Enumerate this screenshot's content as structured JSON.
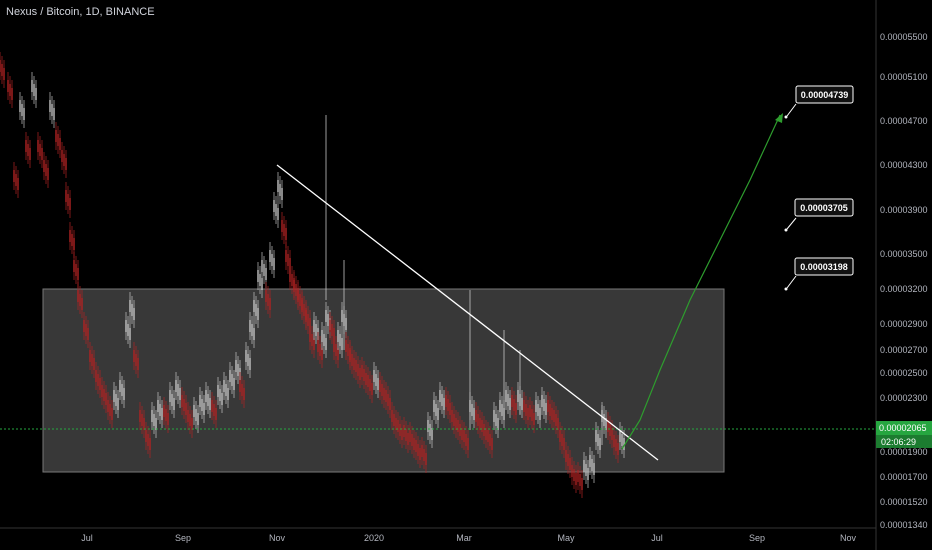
{
  "chart_data": {
    "type": "candlestick",
    "title": "Nexus / Bitcoin, 1D, BINANCE",
    "y_axis_ticks": [
      "0.00005500",
      "0.00005100",
      "0.00004700",
      "0.00004300",
      "0.00003900",
      "0.00003500",
      "0.00003200",
      "0.00002900",
      "0.00002700",
      "0.00002500",
      "0.00002300",
      "0.00001900",
      "0.00001700",
      "0.00001520",
      "0.00001340"
    ],
    "x_axis_ticks": [
      "Jul",
      "Sep",
      "Nov",
      "2020",
      "Mar",
      "May",
      "Jul",
      "Sep",
      "Nov"
    ],
    "current_price": "0.00002065",
    "countdown": "02:06:29",
    "targets": [
      "0.00004739",
      "0.00003705",
      "0.00003198"
    ],
    "range_box": {
      "top": 3.198e-05,
      "bottom": 1.75e-05
    },
    "colors": {
      "background": "#000000",
      "up": "#c4c4c4",
      "down": "#b22222",
      "box": "#444444",
      "trendline": "#ffffff",
      "projection": "#2e9d2e",
      "price_label": "#26a640"
    }
  }
}
